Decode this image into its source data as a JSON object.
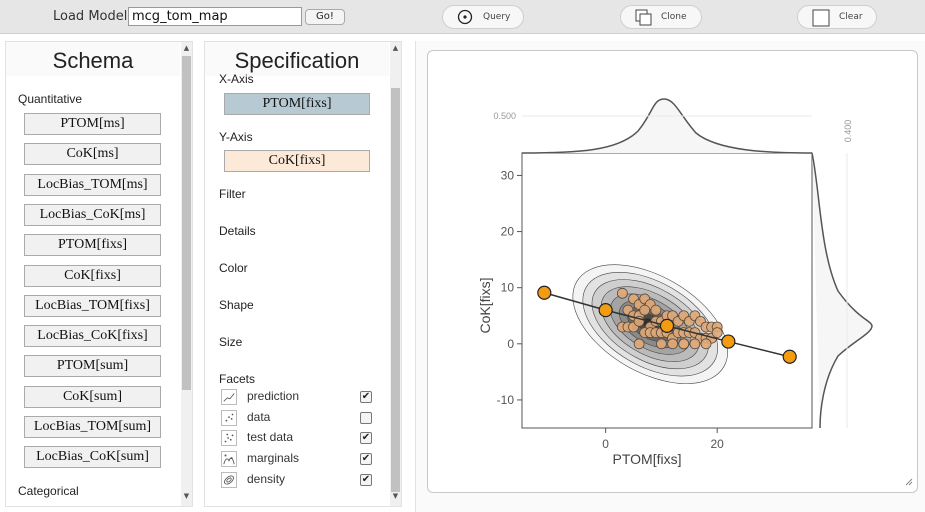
{
  "toolbar": {
    "load_label": "Load Model:",
    "model_value": "mcg_tom_map",
    "go_label": "Go!",
    "query_label": "Query",
    "clone_label": "Clone",
    "clear_label": "Clear"
  },
  "schema": {
    "title": "Schema",
    "quantitative_label": "Quantitative",
    "quantitative_fields": [
      "PTOM[ms]",
      "CoK[ms]",
      "LocBias_TOM[ms]",
      "LocBias_CoK[ms]",
      "PTOM[fixs]",
      "CoK[fixs]",
      "LocBias_TOM[fixs]",
      "LocBias_CoK[fixs]",
      "PTOM[sum]",
      "CoK[sum]",
      "LocBias_TOM[sum]",
      "LocBias_CoK[sum]"
    ],
    "categorical_label": "Categorical"
  },
  "spec": {
    "title": "Specification",
    "x_axis_label": "X-Axis",
    "x_axis_value": "PTOM[fixs]",
    "y_axis_label": "Y-Axis",
    "y_axis_value": "CoK[fixs]",
    "filter_label": "Filter",
    "details_label": "Details",
    "color_label": "Color",
    "shape_label": "Shape",
    "size_label": "Size",
    "facets_label": "Facets",
    "facets": [
      {
        "label": "prediction",
        "checked": true,
        "icon": "prediction-icon"
      },
      {
        "label": "data",
        "checked": false,
        "icon": "data-icon"
      },
      {
        "label": "test data",
        "checked": true,
        "icon": "test-data-icon"
      },
      {
        "label": "marginals",
        "checked": true,
        "icon": "marginals-icon"
      },
      {
        "label": "density",
        "checked": true,
        "icon": "density-icon"
      }
    ]
  },
  "colors": {
    "x_axis_bg": "#b7cad3",
    "y_axis_bg": "#fde9d8",
    "prediction_point": "#f39c12",
    "data_point": "#dfa978"
  },
  "chart_data": {
    "type": "scatter",
    "xlabel": "PTOM[fixs]",
    "ylabel": "CoK[fixs]",
    "x_ticks": [
      0,
      20
    ],
    "y_ticks": [
      30,
      20,
      10,
      0,
      -10
    ],
    "xlim": [
      -15,
      37
    ],
    "ylim": [
      -15,
      34
    ],
    "marginal_x_tick": "0.500",
    "marginal_y_tick": "0.400",
    "prediction": {
      "x": [
        -11,
        0,
        11,
        22,
        33
      ],
      "y": [
        9.1,
        6.0,
        3.2,
        0.4,
        -2.3
      ]
    },
    "test_data": {
      "x": [
        3,
        5,
        4,
        6,
        7,
        8,
        5,
        6,
        7,
        9,
        3,
        4,
        5,
        6,
        8,
        9,
        10,
        11,
        12,
        13,
        14,
        15,
        16,
        17,
        18,
        19,
        20,
        7,
        8,
        9,
        10,
        11,
        12,
        13,
        14,
        15,
        16,
        17,
        18,
        19,
        20,
        12,
        14,
        6,
        10,
        14,
        16,
        18
      ],
      "y": [
        9,
        8,
        6,
        7,
        8,
        7,
        5,
        5,
        6,
        6,
        3,
        3,
        3,
        4,
        3,
        4,
        4,
        5,
        5,
        4,
        5,
        4,
        5,
        4,
        3,
        3,
        3,
        2,
        2,
        2,
        2,
        2,
        1,
        2,
        2,
        2,
        2,
        1,
        1,
        1,
        2,
        0,
        0,
        0,
        0,
        0,
        0,
        0
      ]
    }
  }
}
